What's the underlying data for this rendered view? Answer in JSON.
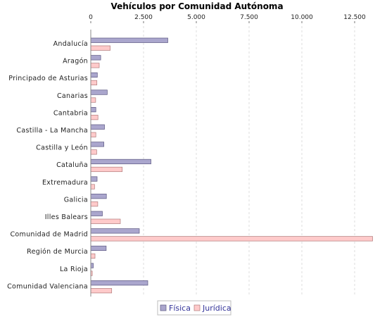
{
  "chart_data": {
    "type": "bar",
    "orientation": "horizontal",
    "title": "Vehículos por Comunidad Autónoma",
    "xlabel": "",
    "ylabel": "",
    "xlim": [
      0,
      13700
    ],
    "x_ticks": [
      0,
      2500,
      5000,
      7500,
      10000,
      12500
    ],
    "x_tick_labels": [
      "0",
      "2.500",
      "5.000",
      "7.500",
      "10.000",
      "12.500"
    ],
    "grid": true,
    "legend_position": "bottom",
    "categories": [
      "Andalucía",
      "Aragón",
      "Principado de Asturias",
      "Canarias",
      "Cantabria",
      "Castilla - La Mancha",
      "Castilla y León",
      "Cataluña",
      "Extremadura",
      "Galicia",
      "Illes Balears",
      "Comunidad de Madrid",
      "Región de Murcia",
      "La Rioja",
      "Comunidad Valenciana"
    ],
    "series": [
      {
        "name": "Física",
        "color": "#aaa6cd",
        "values": [
          3650,
          470,
          310,
          780,
          240,
          650,
          620,
          2850,
          300,
          740,
          550,
          2300,
          730,
          120,
          2700
        ]
      },
      {
        "name": "Jurídica",
        "color": "#ffcaca",
        "values": [
          920,
          400,
          290,
          230,
          340,
          240,
          280,
          1490,
          180,
          330,
          1400,
          13350,
          200,
          70,
          990
        ]
      }
    ]
  }
}
